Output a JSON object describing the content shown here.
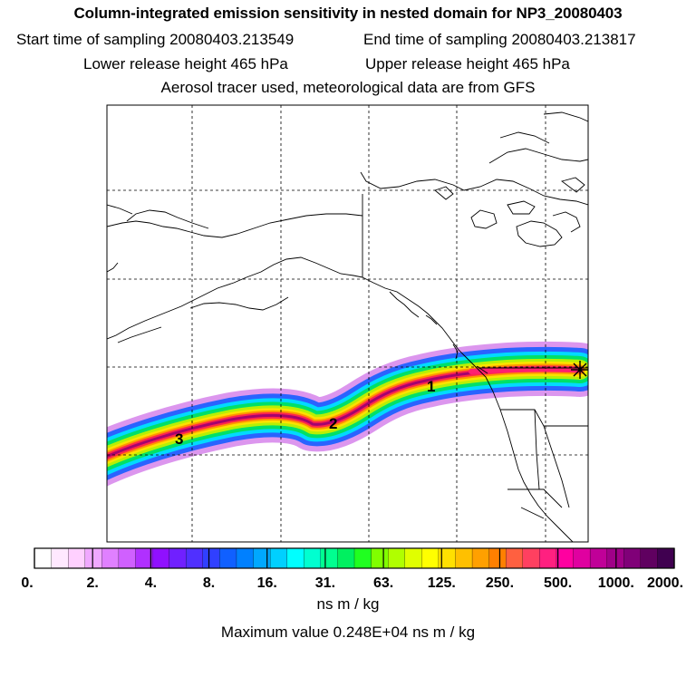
{
  "header": {
    "title": "Column-integrated emission sensitivity in nested domain for NP3_20080403",
    "start_label": "Start time of sampling 20080403.213549",
    "end_label": "End time of sampling 20080403.213817",
    "lower_label": "Lower release height  465 hPa",
    "upper_label": "Upper release height  465 hPa",
    "tracer_note": "Aerosol tracer used, meteorological data are from GFS"
  },
  "map": {
    "release_marker": "star-marker",
    "day_labels": [
      "1",
      "2",
      "3"
    ],
    "plume_colors": [
      "#c040e0",
      "#2060ff",
      "#00e0ff",
      "#00e060",
      "#c0f000",
      "#ffe000",
      "#ff9000",
      "#ff2050",
      "#a00070"
    ]
  },
  "colorbar": {
    "ticks": [
      "0.",
      "2.",
      "4.",
      "8.",
      "16.",
      "31.",
      "63.",
      "125.",
      "250.",
      "500.",
      "1000.",
      "2000."
    ],
    "colors": [
      "#ffffff",
      "#ffe8ff",
      "#ffd0ff",
      "#f0a8ff",
      "#e080ff",
      "#d060ff",
      "#b030ff",
      "#9010ff",
      "#7020ff",
      "#5030ff",
      "#3040ff",
      "#1060ff",
      "#0080ff",
      "#00a8ff",
      "#00d0ff",
      "#00ffff",
      "#00ffd0",
      "#00ff90",
      "#00f060",
      "#20ff20",
      "#80ff00",
      "#b0ff00",
      "#e0ff00",
      "#ffff00",
      "#ffe000",
      "#ffc000",
      "#ffa000",
      "#ff8000",
      "#ff6040",
      "#ff4060",
      "#ff2080",
      "#ff00a0",
      "#e000a0",
      "#c00098",
      "#a00088",
      "#800078",
      "#600060",
      "#400050"
    ],
    "units": "ns m / kg",
    "max_value_label": "Maximum value  0.248E+04 ns m / kg"
  }
}
